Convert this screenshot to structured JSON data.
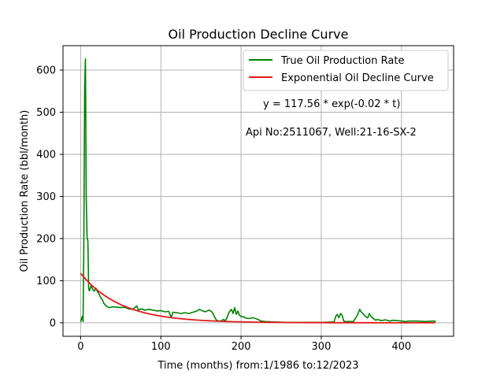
{
  "chart_data": {
    "type": "line",
    "title": "Oil Production Decline Curve",
    "xlabel": "Time (months) from:1/1986 to:12/2023",
    "ylabel": "Oil Production Rate (bbl/month)",
    "xlim": [
      -22,
      465
    ],
    "ylim": [
      -32,
      658
    ],
    "x_ticks": [
      0,
      100,
      200,
      300,
      400
    ],
    "y_ticks": [
      0,
      100,
      200,
      300,
      400,
      500,
      600
    ],
    "grid": true,
    "legend_position": "top-right",
    "annotations": [
      "y = 117.56 * exp(-0.02 * t)",
      "Api No:2511067, Well:21-16-SX-2"
    ],
    "series": [
      {
        "name": "True Oil Production Rate",
        "color": "#008000",
        "points": [
          [
            0,
            2
          ],
          [
            2,
            15
          ],
          [
            3,
            3
          ],
          [
            4,
            200
          ],
          [
            5,
            560
          ],
          [
            6,
            627
          ],
          [
            7,
            300
          ],
          [
            8,
            200
          ],
          [
            9,
            195
          ],
          [
            10,
            80
          ],
          [
            11,
            76
          ],
          [
            13,
            88
          ],
          [
            15,
            80
          ],
          [
            17,
            75
          ],
          [
            19,
            82
          ],
          [
            21,
            74
          ],
          [
            23,
            68
          ],
          [
            25,
            60
          ],
          [
            27,
            55
          ],
          [
            29,
            46
          ],
          [
            31,
            42
          ],
          [
            33,
            38
          ],
          [
            36,
            36
          ],
          [
            40,
            38
          ],
          [
            45,
            37
          ],
          [
            50,
            36
          ],
          [
            55,
            37
          ],
          [
            60,
            33
          ],
          [
            65,
            32
          ],
          [
            70,
            40
          ],
          [
            72,
            30
          ],
          [
            75,
            33
          ],
          [
            80,
            30
          ],
          [
            85,
            32
          ],
          [
            90,
            30
          ],
          [
            95,
            28
          ],
          [
            100,
            29
          ],
          [
            105,
            26
          ],
          [
            110,
            27
          ],
          [
            113,
            12
          ],
          [
            115,
            25
          ],
          [
            120,
            24
          ],
          [
            125,
            22
          ],
          [
            130,
            24
          ],
          [
            135,
            22
          ],
          [
            140,
            25
          ],
          [
            145,
            28
          ],
          [
            148,
            32
          ],
          [
            150,
            30
          ],
          [
            155,
            26
          ],
          [
            160,
            30
          ],
          [
            163,
            27
          ],
          [
            165,
            22
          ],
          [
            168,
            10
          ],
          [
            170,
            5
          ],
          [
            175,
            4
          ],
          [
            178,
            8
          ],
          [
            180,
            5
          ],
          [
            182,
            10
          ],
          [
            185,
            25
          ],
          [
            188,
            32
          ],
          [
            190,
            22
          ],
          [
            192,
            36
          ],
          [
            194,
            20
          ],
          [
            196,
            28
          ],
          [
            198,
            18
          ],
          [
            200,
            15
          ],
          [
            203,
            14
          ],
          [
            206,
            11
          ],
          [
            210,
            10
          ],
          [
            215,
            12
          ],
          [
            220,
            9
          ],
          [
            225,
            4
          ],
          [
            230,
            3
          ],
          [
            240,
            2
          ],
          [
            260,
            1
          ],
          [
            280,
            1
          ],
          [
            300,
            1
          ],
          [
            316,
            2
          ],
          [
            318,
            15
          ],
          [
            320,
            20
          ],
          [
            322,
            12
          ],
          [
            324,
            22
          ],
          [
            326,
            18
          ],
          [
            328,
            4
          ],
          [
            330,
            3
          ],
          [
            340,
            3
          ],
          [
            345,
            18
          ],
          [
            348,
            32
          ],
          [
            350,
            25
          ],
          [
            352,
            22
          ],
          [
            355,
            15
          ],
          [
            358,
            12
          ],
          [
            360,
            22
          ],
          [
            362,
            15
          ],
          [
            365,
            10
          ],
          [
            368,
            6
          ],
          [
            370,
            8
          ],
          [
            375,
            5
          ],
          [
            380,
            7
          ],
          [
            385,
            4
          ],
          [
            390,
            6
          ],
          [
            395,
            5
          ],
          [
            400,
            4
          ],
          [
            405,
            3
          ],
          [
            410,
            4
          ],
          [
            420,
            4
          ],
          [
            430,
            3
          ],
          [
            440,
            4
          ],
          [
            443,
            3
          ]
        ]
      },
      {
        "name": "Exponential Oil Decline Curve",
        "color": "#e31a1c",
        "equation": {
          "a": 117.56,
          "b": -0.02
        },
        "x_range": [
          0,
          443
        ]
      }
    ]
  }
}
